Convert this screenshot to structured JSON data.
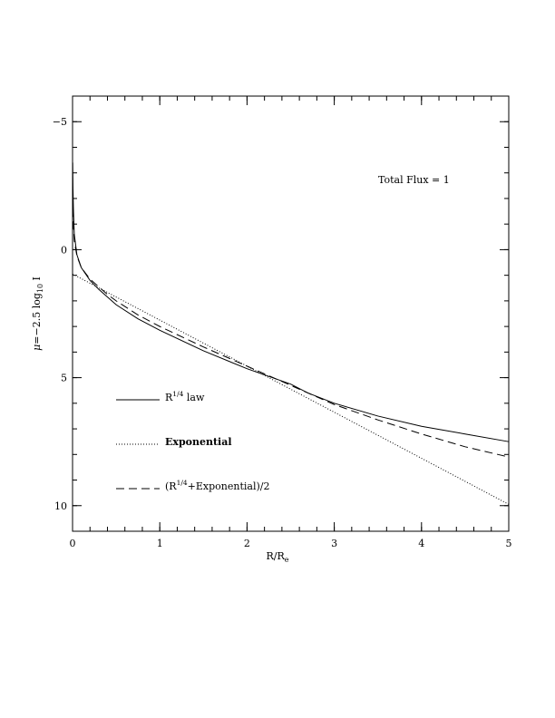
{
  "chart_data": {
    "type": "line",
    "xlabel_main": "R/R",
    "xlabel_sub": "e",
    "ylabel": {
      "mu": "μ",
      "eq": "=−2.5 log",
      "sub": "10",
      "tail": " I"
    },
    "xlim": [
      0,
      5
    ],
    "ylim": [
      11,
      -6
    ],
    "y_inverted": true,
    "x_ticks": [
      0,
      1,
      2,
      3,
      4,
      5
    ],
    "x_tick_labels": [
      "0",
      "1",
      "2",
      "3",
      "4",
      "5"
    ],
    "y_ticks": [
      -5,
      0,
      5,
      10
    ],
    "y_tick_labels": [
      "−5",
      "0",
      "5",
      "10"
    ],
    "annotation": "Total Flux = 1",
    "grid": false,
    "legend_placement": "lower-left",
    "series": [
      {
        "name_parts": [
          "R",
          "1/4",
          " law"
        ],
        "style": "solid",
        "x": [
          0.002,
          0.005,
          0.01,
          0.02,
          0.05,
          0.1,
          0.2,
          0.3,
          0.4,
          0.5,
          0.75,
          1.0,
          1.5,
          2.0,
          2.5,
          2.7,
          3.0,
          3.5,
          4.0,
          4.5,
          5.0
        ],
        "y": [
          -3.4,
          -2.4,
          -1.6,
          -0.6,
          0.2,
          0.7,
          1.2,
          1.55,
          1.85,
          2.15,
          2.7,
          3.15,
          3.95,
          4.65,
          5.25,
          5.6,
          6.0,
          6.5,
          6.9,
          7.2,
          7.5
        ]
      },
      {
        "name_parts": [
          "Exponential"
        ],
        "style": "dotted",
        "x": [
          0.0,
          0.5,
          1.0,
          1.5,
          2.0,
          2.5,
          3.0,
          3.5,
          4.0,
          4.5,
          5.0
        ],
        "y": [
          0.95,
          1.85,
          2.75,
          3.65,
          4.55,
          5.45,
          6.35,
          7.25,
          8.15,
          9.05,
          9.95
        ]
      },
      {
        "name_parts": [
          "(R",
          "1/4",
          "+Exponential)/2"
        ],
        "style": "dashed",
        "x": [
          0.002,
          0.005,
          0.01,
          0.02,
          0.05,
          0.1,
          0.2,
          0.3,
          0.4,
          0.5,
          0.75,
          1.0,
          1.5,
          2.0,
          2.5,
          2.7,
          3.0,
          3.5,
          4.0,
          4.5,
          5.0
        ],
        "y": [
          -1.6,
          -1.3,
          -0.9,
          -0.35,
          0.25,
          0.7,
          1.15,
          1.45,
          1.75,
          2.0,
          2.55,
          3.0,
          3.8,
          4.55,
          5.3,
          5.6,
          6.05,
          6.65,
          7.2,
          7.7,
          8.1
        ]
      }
    ]
  }
}
